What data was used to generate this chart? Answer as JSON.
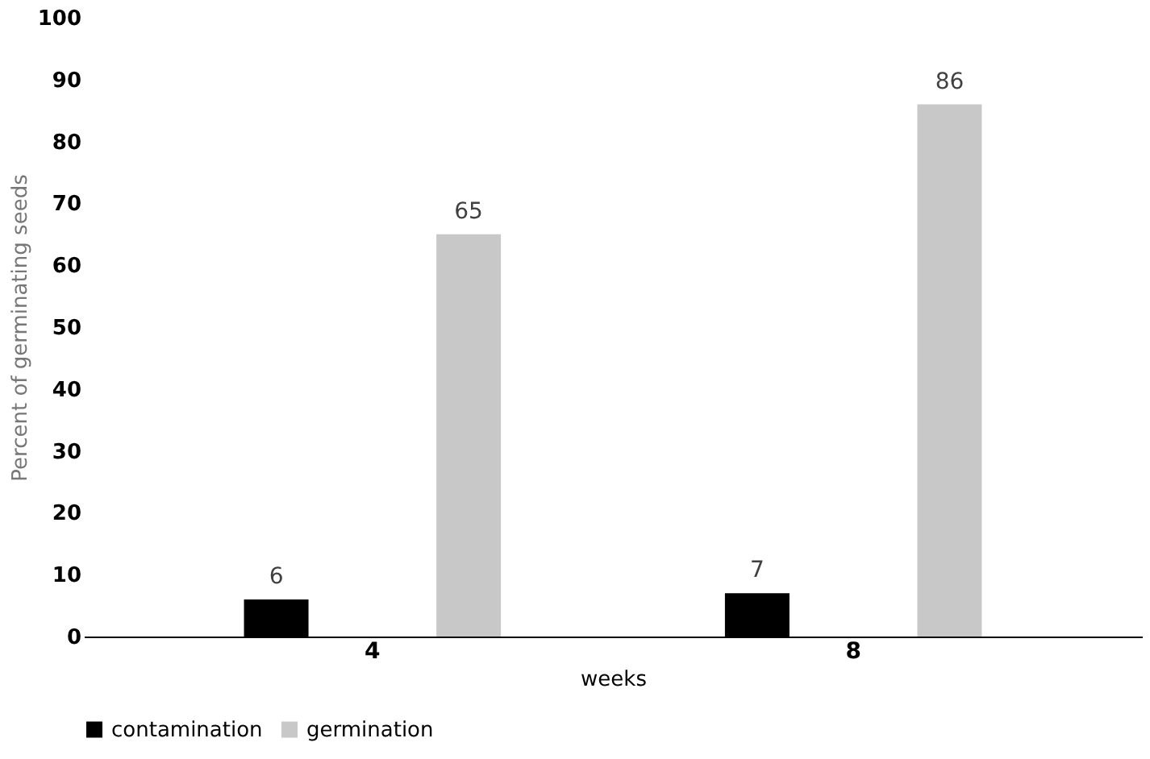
{
  "chart_data": {
    "type": "bar",
    "xlabel": "weeks",
    "ylabel": "Percent of germinating seeds",
    "categories": [
      "4",
      "8"
    ],
    "series": [
      {
        "name": "contamination",
        "color": "#000000",
        "values": [
          6,
          7
        ]
      },
      {
        "name": "germination",
        "color": "#c8c8c8",
        "values": [
          65,
          86
        ]
      }
    ],
    "ylim": [
      0,
      100
    ],
    "yticks": [
      0,
      10,
      20,
      30,
      40,
      50,
      60,
      70,
      80,
      90,
      100
    ],
    "grid": false,
    "legend": "bottom",
    "data_labels": true
  }
}
